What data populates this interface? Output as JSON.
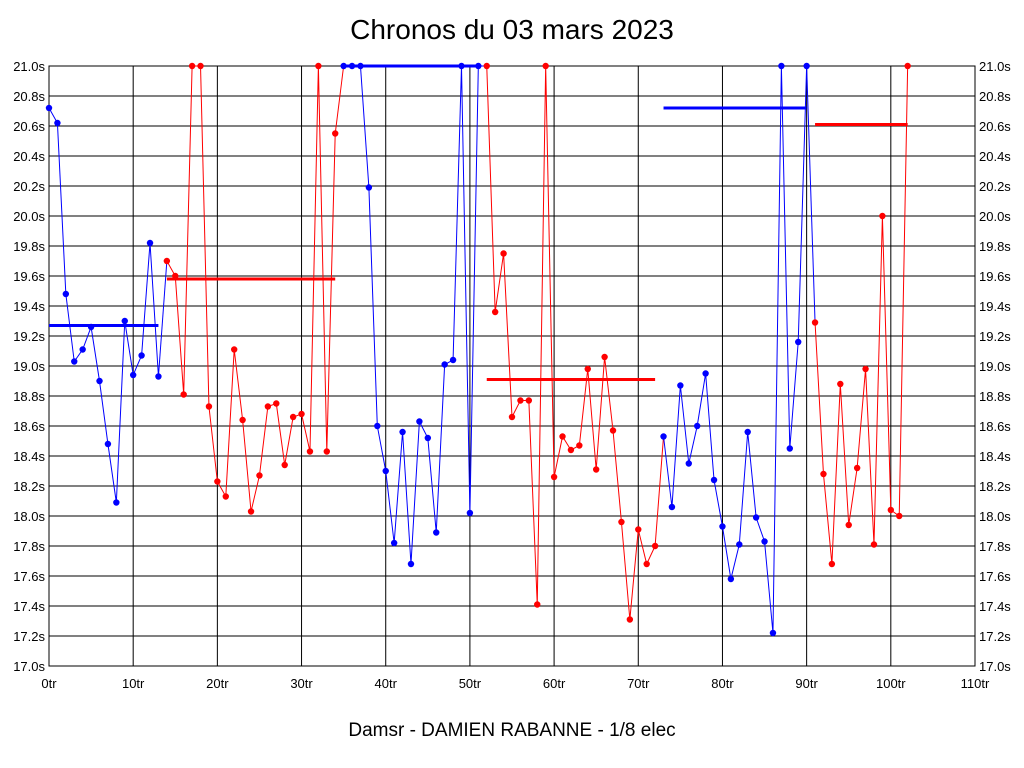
{
  "chart_data": {
    "type": "line",
    "title": "Chronos du 03 mars 2023",
    "subtitle": "Damsr - DAMIEN RABANNE - 1/8 elec",
    "xlim": [
      0,
      110
    ],
    "ylim": [
      17.0,
      21.0
    ],
    "x_ticks": [
      0,
      10,
      20,
      30,
      40,
      50,
      60,
      70,
      80,
      90,
      100,
      110
    ],
    "x_tick_labels": [
      "0tr",
      "10tr",
      "20tr",
      "30tr",
      "40tr",
      "50tr",
      "60tr",
      "70tr",
      "80tr",
      "90tr",
      "100tr",
      "110tr"
    ],
    "y_ticks": [
      17.0,
      17.2,
      17.4,
      17.6,
      17.8,
      18.0,
      18.2,
      18.4,
      18.6,
      18.8,
      19.0,
      19.2,
      19.4,
      19.6,
      19.8,
      20.0,
      20.2,
      20.4,
      20.6,
      20.8,
      21.0
    ],
    "y_tick_labels": [
      "17.0s",
      "17.2s",
      "17.4s",
      "17.6s",
      "17.8s",
      "18.0s",
      "18.2s",
      "18.4s",
      "18.6s",
      "18.8s",
      "19.0s",
      "19.2s",
      "19.4s",
      "19.6s",
      "19.8s",
      "20.0s",
      "20.2s",
      "20.4s",
      "20.6s",
      "20.8s",
      "21.0s"
    ],
    "grid": true,
    "colors": {
      "blue": "#0000ff",
      "red": "#ff0000",
      "grid": "#000000"
    },
    "segments": [
      {
        "color": "blue",
        "x": [
          0,
          1,
          2,
          3,
          4,
          5,
          6,
          7,
          8,
          9,
          10,
          11,
          12,
          13
        ],
        "y": [
          20.72,
          20.62,
          19.48,
          19.03,
          19.11,
          19.26,
          18.9,
          18.48,
          18.09,
          19.3,
          18.94,
          19.07,
          19.82,
          18.93
        ],
        "mean": 19.27
      },
      {
        "color": "red",
        "x": [
          14,
          15,
          16,
          17,
          18,
          19,
          20,
          21,
          22,
          23,
          24,
          25,
          26,
          27,
          28,
          29,
          30,
          31,
          32,
          33,
          34
        ],
        "y": [
          19.7,
          19.6,
          18.81,
          21.0,
          21.0,
          18.73,
          18.23,
          18.13,
          19.11,
          18.64,
          18.03,
          18.27,
          18.73,
          18.75,
          18.34,
          18.66,
          18.68,
          18.43,
          21.0,
          18.43,
          20.55
        ],
        "mean": 19.58
      },
      {
        "color": "blue",
        "x": [
          35,
          36,
          37,
          38,
          39,
          40,
          41,
          42,
          43,
          44,
          45,
          46,
          47,
          48,
          49,
          50,
          51
        ],
        "y": [
          21.0,
          21.0,
          21.0,
          20.19,
          18.6,
          18.3,
          17.82,
          18.56,
          17.68,
          18.63,
          18.52,
          17.89,
          19.01,
          19.04,
          21.0,
          18.02,
          21.0
        ],
        "mean": 21.0
      },
      {
        "color": "red",
        "x": [
          52,
          53,
          54,
          55,
          56,
          57,
          58,
          59,
          60,
          61,
          62,
          63,
          64,
          65,
          66,
          67,
          68,
          69,
          70,
          71,
          72
        ],
        "y": [
          21.0,
          19.36,
          19.75,
          18.66,
          18.77,
          18.77,
          17.41,
          21.0,
          18.26,
          18.53,
          18.44,
          18.47,
          18.98,
          18.31,
          19.06,
          18.57,
          17.96,
          17.31,
          17.91,
          17.68,
          17.8
        ],
        "mean": 18.91
      },
      {
        "color": "blue",
        "x": [
          73,
          74,
          75,
          76,
          77,
          78,
          79,
          80,
          81,
          82,
          83,
          84,
          85,
          86,
          87,
          88,
          89,
          90
        ],
        "y": [
          18.53,
          18.06,
          18.87,
          18.35,
          18.6,
          18.95,
          18.24,
          17.93,
          17.58,
          17.81,
          18.56,
          17.99,
          17.83,
          17.22,
          21.0,
          18.45,
          19.16,
          21.0
        ],
        "mean": 20.72
      },
      {
        "color": "red",
        "x": [
          91,
          92,
          93,
          94,
          95,
          96,
          97,
          98,
          99,
          100,
          101,
          102
        ],
        "y": [
          19.29,
          18.28,
          17.68,
          18.88,
          17.94,
          18.32,
          18.98,
          17.81,
          20.0,
          18.04,
          18.0,
          21.0
        ],
        "mean": 20.61
      }
    ]
  }
}
